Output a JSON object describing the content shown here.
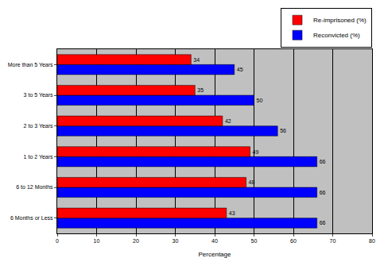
{
  "chart_data": {
    "type": "bar",
    "orientation": "horizontal",
    "x_label": "Percentage",
    "categories": [
      "6 Months or Less",
      "6 to 12 Months",
      "1 to 2 Years",
      "2 to 3 Years",
      "3 to 5 Years",
      "More than 5 Years"
    ],
    "series": [
      {
        "name": "Re-imprisoned (%)",
        "color": "#ff0000",
        "values": [
          43,
          48,
          49,
          42,
          35,
          34
        ]
      },
      {
        "name": "Reconvicted (%)",
        "color": "#0000ff",
        "values": [
          66,
          66,
          66,
          56,
          50,
          45
        ]
      }
    ],
    "xlim": [
      0,
      80
    ],
    "xticks": [
      0,
      10,
      20,
      30,
      40,
      50,
      60,
      70,
      80
    ],
    "grid": true,
    "legend": "upper right",
    "data_labels": true
  }
}
